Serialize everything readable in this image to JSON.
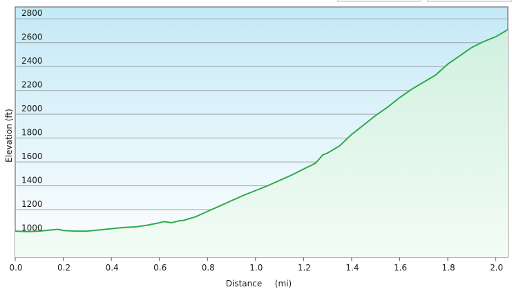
{
  "chart_data": {
    "type": "area",
    "title": "",
    "xlabel": "Distance",
    "xunit": "(mi)",
    "ylabel": "Elevation (ft)",
    "xlim": [
      0.0,
      2.05
    ],
    "ylim": [
      800,
      2900
    ],
    "x_ticks": [
      "0.0",
      "0.2",
      "0.4",
      "0.6",
      "0.8",
      "1.0",
      "1.2",
      "1.4",
      "1.6",
      "1.8",
      "2.0"
    ],
    "y_ticks": [
      "1000",
      "1200",
      "1400",
      "1600",
      "1800",
      "2000",
      "2200",
      "2400",
      "2600",
      "2800"
    ],
    "grid": true,
    "colors": {
      "line": "#2eaa4a",
      "fill_top": "#d0f0df",
      "fill_bottom": "#f3fcf6",
      "bg_top": "#c4e9f6",
      "bg_bottom": "#ffffff"
    },
    "series": [
      {
        "x": [
          0.0,
          0.05,
          0.1,
          0.15,
          0.18,
          0.2,
          0.25,
          0.3,
          0.35,
          0.4,
          0.45,
          0.5,
          0.55,
          0.6,
          0.62,
          0.65,
          0.68,
          0.7,
          0.75,
          0.8,
          0.85,
          0.9,
          0.95,
          1.0,
          1.05,
          1.1,
          1.15,
          1.2,
          1.25,
          1.28,
          1.3,
          1.35,
          1.4,
          1.45,
          1.5,
          1.55,
          1.6,
          1.65,
          1.7,
          1.75,
          1.8,
          1.85,
          1.9,
          1.95,
          2.0,
          2.05
        ],
        "y": [
          1020,
          1015,
          1020,
          1030,
          1035,
          1025,
          1020,
          1020,
          1030,
          1040,
          1050,
          1055,
          1070,
          1090,
          1100,
          1090,
          1105,
          1110,
          1140,
          1185,
          1230,
          1275,
          1320,
          1360,
          1400,
          1445,
          1490,
          1540,
          1590,
          1660,
          1675,
          1735,
          1830,
          1910,
          1990,
          2060,
          2140,
          2210,
          2270,
          2330,
          2420,
          2490,
          2560,
          2610,
          2650,
          2710
        ]
      }
    ]
  }
}
